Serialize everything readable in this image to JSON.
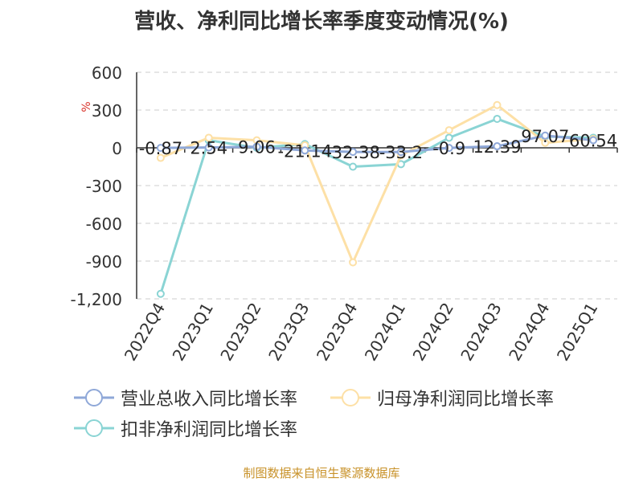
{
  "title": "营收、净利同比增长率季度变动情况(%)",
  "source": "制图数据来自恒生聚源数据库",
  "chart_data": {
    "type": "line",
    "title": "营收、净利同比增长率季度变动情况(%)",
    "ylabel": "%",
    "xlabel": "",
    "ylim": [
      -1200,
      600
    ],
    "yticks": [
      600,
      300,
      0,
      -300,
      -600,
      -900,
      -1200
    ],
    "ytick_labels": [
      "600",
      "300",
      "0",
      "-300",
      "-600",
      "-900",
      "-1,200"
    ],
    "grid": true,
    "legend_position": "bottom",
    "categories": [
      "2022Q4",
      "2023Q1",
      "2023Q2",
      "2023Q3",
      "2023Q4",
      "2024Q1",
      "2024Q2",
      "2024Q3",
      "2024Q4",
      "2025Q1"
    ],
    "series": [
      {
        "name": "营业总收入同比增长率",
        "color": "#8fa8d8",
        "values": [
          -0.87,
          2.54,
          9.06,
          -21.14,
          -32.38,
          -33.2,
          -0.9,
          12.39,
          97.07,
          60.54
        ],
        "labels": [
          "-0.87",
          "2.54",
          "9.06",
          "-21.14",
          "-32.38",
          "-33.2",
          "-0.9",
          "12.39",
          "97.07",
          "60.54"
        ]
      },
      {
        "name": "归母净利润同比增长率",
        "color": "#fde0a6",
        "values": [
          -80,
          80,
          60,
          20,
          -910,
          -60,
          140,
          340,
          40,
          70
        ]
      },
      {
        "name": "扣非净利润同比增长率",
        "color": "#8ad4d4",
        "values": [
          -1160,
          60,
          0,
          30,
          -150,
          -130,
          80,
          230,
          90,
          80
        ]
      }
    ]
  }
}
